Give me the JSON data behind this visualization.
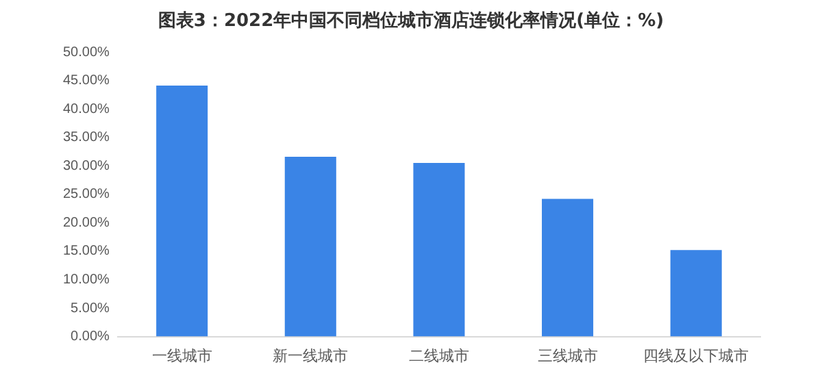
{
  "chart_data": {
    "type": "bar",
    "title": "图表3：2022年中国不同档位城市酒店连锁化率情况(单位：%)",
    "categories": [
      "一线城市",
      "新一线城市",
      "二线城市",
      "三线城市",
      "四线及以下城市"
    ],
    "values": [
      44.1,
      31.6,
      30.5,
      24.2,
      15.2
    ],
    "color": "#3a84e6",
    "ylim": [
      0,
      50
    ],
    "yticks": [
      {
        "value": 0,
        "label": "0.00%"
      },
      {
        "value": 5,
        "label": "5.00%"
      },
      {
        "value": 10,
        "label": "10.00%"
      },
      {
        "value": 15,
        "label": "15.00%"
      },
      {
        "value": 20,
        "label": "20.00%"
      },
      {
        "value": 25,
        "label": "25.00%"
      },
      {
        "value": 30,
        "label": "30.00%"
      },
      {
        "value": 35,
        "label": "35.00%"
      },
      {
        "value": 40,
        "label": "40.00%"
      },
      {
        "value": 45,
        "label": "45.00%"
      },
      {
        "value": 50,
        "label": "50.00%"
      }
    ],
    "grid": false,
    "legend": false
  }
}
